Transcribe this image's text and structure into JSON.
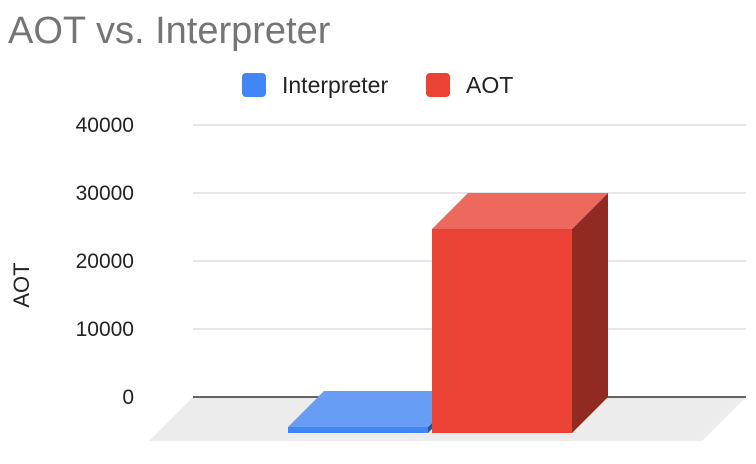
{
  "chart_data": {
    "type": "bar",
    "title": "AOT vs. Interpreter",
    "ylabel": "AOT",
    "xlabel": "",
    "ylim": [
      0,
      40000
    ],
    "yticks": [
      0,
      10000,
      20000,
      30000,
      40000
    ],
    "grid": true,
    "legend_position": "top",
    "style": "3d",
    "series": [
      {
        "name": "Interpreter",
        "value": 450,
        "color": "#4285F4"
      },
      {
        "name": "AOT",
        "value": 30000,
        "color": "#EA4335"
      }
    ]
  }
}
